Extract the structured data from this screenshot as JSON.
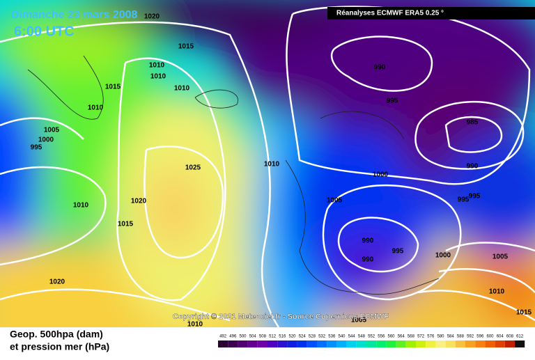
{
  "header": {
    "date": "Dimanche 23 mars 2008",
    "time": "6:00 UTC",
    "source": "Réanalyses ECMWF ERA5 0.25 °"
  },
  "copyright": "Copyright © 2021 Meteociel.fr - Source Copernicus ECMWF",
  "legend": {
    "line1": "Geop. 500hpa (dam)",
    "line2": "et pression mer (hPa)",
    "scale": [
      492,
      496,
      500,
      504,
      508,
      512,
      516,
      520,
      524,
      528,
      532,
      536,
      540,
      544,
      548,
      552,
      556,
      560,
      564,
      568,
      572,
      576,
      580,
      584,
      588,
      592,
      596,
      600,
      604,
      608,
      612
    ],
    "colors": [
      "#2a0030",
      "#3c0050",
      "#500070",
      "#640090",
      "#7000a8",
      "#5000c0",
      "#3010d0",
      "#1020e0",
      "#0030f0",
      "#0050ff",
      "#0070ff",
      "#0090ff",
      "#00b0ff",
      "#00d0f0",
      "#00e0d0",
      "#00e8a0",
      "#00f070",
      "#20f040",
      "#60f020",
      "#a0f000",
      "#d0f010",
      "#f0f040",
      "#f8f080",
      "#f8e060",
      "#f8c040",
      "#f8a020",
      "#f88010",
      "#f06000",
      "#e04000",
      "#c02000",
      "#101010"
    ]
  },
  "isobars": [
    1020,
    1015,
    1010,
    1010,
    1015,
    1010,
    1010,
    1005,
    1000,
    995,
    1025,
    1010,
    1020,
    1010,
    1015,
    1020,
    990,
    995,
    985,
    990,
    1000,
    1005,
    995,
    995,
    990,
    995,
    990,
    1000,
    1005,
    1010,
    1015,
    1010,
    1005
  ]
}
